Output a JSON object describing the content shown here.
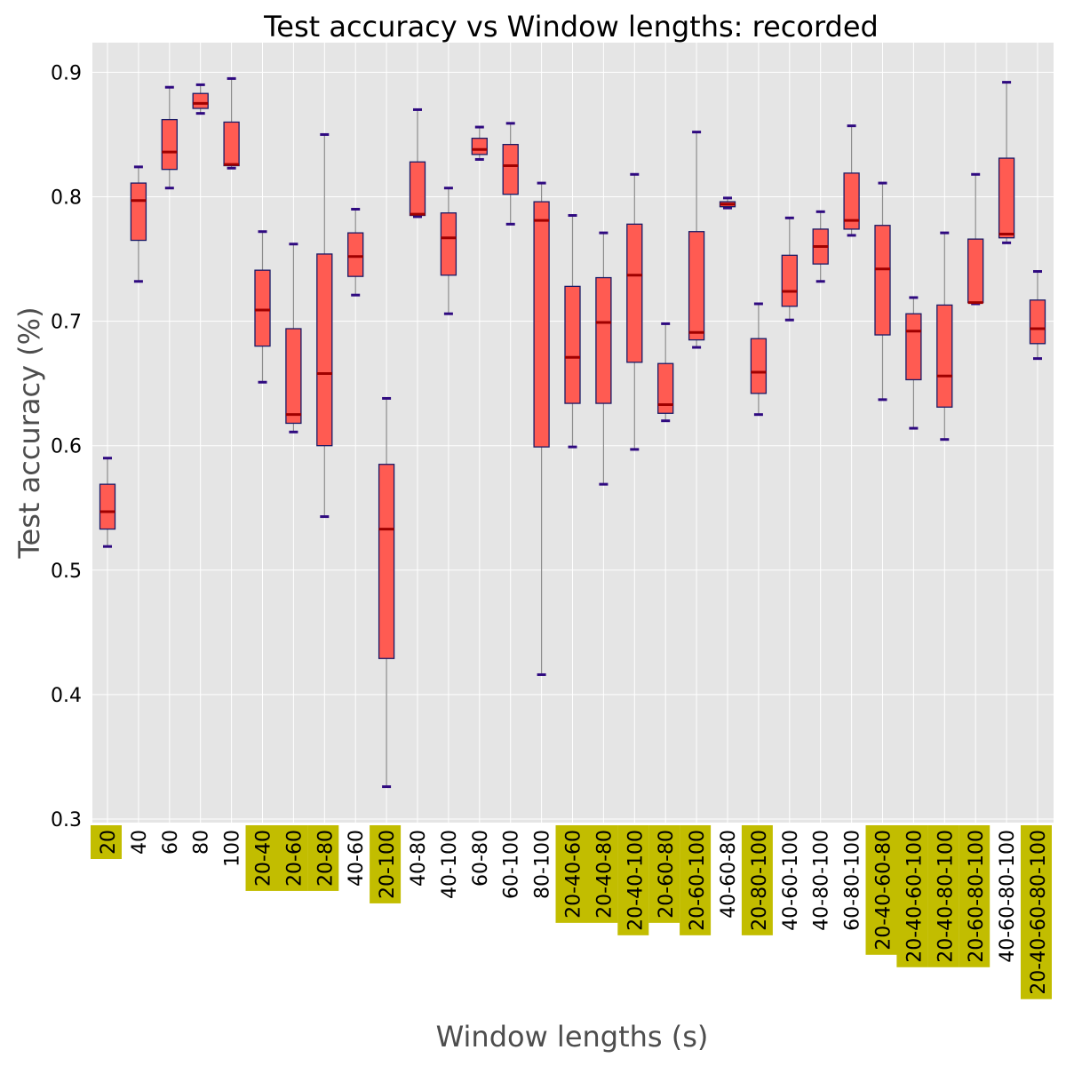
{
  "chart_data": {
    "type": "box",
    "title": "Test accuracy vs Window lengths: recorded",
    "xlabel": "Window lengths (s)",
    "ylabel": "Test accuracy (%)",
    "ylim": [
      0.3,
      0.92
    ],
    "yticks": [
      0.3,
      0.4,
      0.5,
      0.6,
      0.7,
      0.8,
      0.9
    ],
    "grid": true,
    "highlight_color": "#c2bd00",
    "box_color": "#ff5b52",
    "median_color": "#a00000",
    "categories": [
      {
        "label": "20",
        "highlighted": true,
        "min": 0.519,
        "q1": 0.533,
        "median": 0.547,
        "q3": 0.569,
        "max": 0.59
      },
      {
        "label": "40",
        "highlighted": false,
        "min": 0.732,
        "q1": 0.765,
        "median": 0.797,
        "q3": 0.811,
        "max": 0.824
      },
      {
        "label": "60",
        "highlighted": false,
        "min": 0.807,
        "q1": 0.822,
        "median": 0.836,
        "q3": 0.862,
        "max": 0.888
      },
      {
        "label": "80",
        "highlighted": false,
        "min": 0.867,
        "q1": 0.871,
        "median": 0.875,
        "q3": 0.883,
        "max": 0.89
      },
      {
        "label": "100",
        "highlighted": false,
        "min": 0.823,
        "q1": 0.825,
        "median": 0.826,
        "q3": 0.86,
        "max": 0.895
      },
      {
        "label": "20-40",
        "highlighted": true,
        "min": 0.651,
        "q1": 0.68,
        "median": 0.709,
        "q3": 0.741,
        "max": 0.772
      },
      {
        "label": "20-60",
        "highlighted": true,
        "min": 0.611,
        "q1": 0.618,
        "median": 0.625,
        "q3": 0.694,
        "max": 0.762
      },
      {
        "label": "20-80",
        "highlighted": true,
        "min": 0.543,
        "q1": 0.6,
        "median": 0.658,
        "q3": 0.754,
        "max": 0.85
      },
      {
        "label": "40-60",
        "highlighted": false,
        "min": 0.721,
        "q1": 0.736,
        "median": 0.752,
        "q3": 0.771,
        "max": 0.79
      },
      {
        "label": "20-100",
        "highlighted": true,
        "min": 0.326,
        "q1": 0.429,
        "median": 0.533,
        "q3": 0.585,
        "max": 0.638
      },
      {
        "label": "40-80",
        "highlighted": false,
        "min": 0.784,
        "q1": 0.785,
        "median": 0.786,
        "q3": 0.828,
        "max": 0.87
      },
      {
        "label": "40-100",
        "highlighted": false,
        "min": 0.706,
        "q1": 0.737,
        "median": 0.767,
        "q3": 0.787,
        "max": 0.807
      },
      {
        "label": "60-80",
        "highlighted": false,
        "min": 0.83,
        "q1": 0.834,
        "median": 0.838,
        "q3": 0.847,
        "max": 0.856
      },
      {
        "label": "60-100",
        "highlighted": false,
        "min": 0.778,
        "q1": 0.802,
        "median": 0.825,
        "q3": 0.842,
        "max": 0.859
      },
      {
        "label": "80-100",
        "highlighted": false,
        "min": 0.416,
        "q1": 0.599,
        "median": 0.781,
        "q3": 0.796,
        "max": 0.811
      },
      {
        "label": "20-40-60",
        "highlighted": true,
        "min": 0.599,
        "q1": 0.634,
        "median": 0.671,
        "q3": 0.728,
        "max": 0.785
      },
      {
        "label": "20-40-80",
        "highlighted": true,
        "min": 0.569,
        "q1": 0.634,
        "median": 0.699,
        "q3": 0.735,
        "max": 0.771
      },
      {
        "label": "20-40-100",
        "highlighted": true,
        "min": 0.597,
        "q1": 0.667,
        "median": 0.737,
        "q3": 0.778,
        "max": 0.818
      },
      {
        "label": "20-60-80",
        "highlighted": true,
        "min": 0.62,
        "q1": 0.626,
        "median": 0.633,
        "q3": 0.666,
        "max": 0.698
      },
      {
        "label": "20-60-100",
        "highlighted": true,
        "min": 0.679,
        "q1": 0.685,
        "median": 0.691,
        "q3": 0.772,
        "max": 0.852
      },
      {
        "label": "40-60-80",
        "highlighted": false,
        "min": 0.791,
        "q1": 0.792,
        "median": 0.794,
        "q3": 0.796,
        "max": 0.799
      },
      {
        "label": "20-80-100",
        "highlighted": true,
        "min": 0.625,
        "q1": 0.642,
        "median": 0.659,
        "q3": 0.686,
        "max": 0.714
      },
      {
        "label": "40-60-100",
        "highlighted": false,
        "min": 0.701,
        "q1": 0.712,
        "median": 0.724,
        "q3": 0.753,
        "max": 0.783
      },
      {
        "label": "40-80-100",
        "highlighted": false,
        "min": 0.732,
        "q1": 0.746,
        "median": 0.76,
        "q3": 0.774,
        "max": 0.788
      },
      {
        "label": "60-80-100",
        "highlighted": false,
        "min": 0.769,
        "q1": 0.774,
        "median": 0.781,
        "q3": 0.819,
        "max": 0.857
      },
      {
        "label": "20-40-60-80",
        "highlighted": true,
        "min": 0.637,
        "q1": 0.689,
        "median": 0.742,
        "q3": 0.777,
        "max": 0.811
      },
      {
        "label": "20-40-60-100",
        "highlighted": true,
        "min": 0.614,
        "q1": 0.653,
        "median": 0.692,
        "q3": 0.706,
        "max": 0.719
      },
      {
        "label": "20-40-80-100",
        "highlighted": true,
        "min": 0.605,
        "q1": 0.631,
        "median": 0.656,
        "q3": 0.713,
        "max": 0.771
      },
      {
        "label": "20-60-80-100",
        "highlighted": true,
        "min": 0.714,
        "q1": 0.715,
        "median": 0.715,
        "q3": 0.766,
        "max": 0.818
      },
      {
        "label": "40-60-80-100",
        "highlighted": false,
        "min": 0.763,
        "q1": 0.767,
        "median": 0.77,
        "q3": 0.831,
        "max": 0.892
      },
      {
        "label": "20-40-60-80-100",
        "highlighted": true,
        "min": 0.67,
        "q1": 0.682,
        "median": 0.694,
        "q3": 0.717,
        "max": 0.74
      }
    ]
  }
}
